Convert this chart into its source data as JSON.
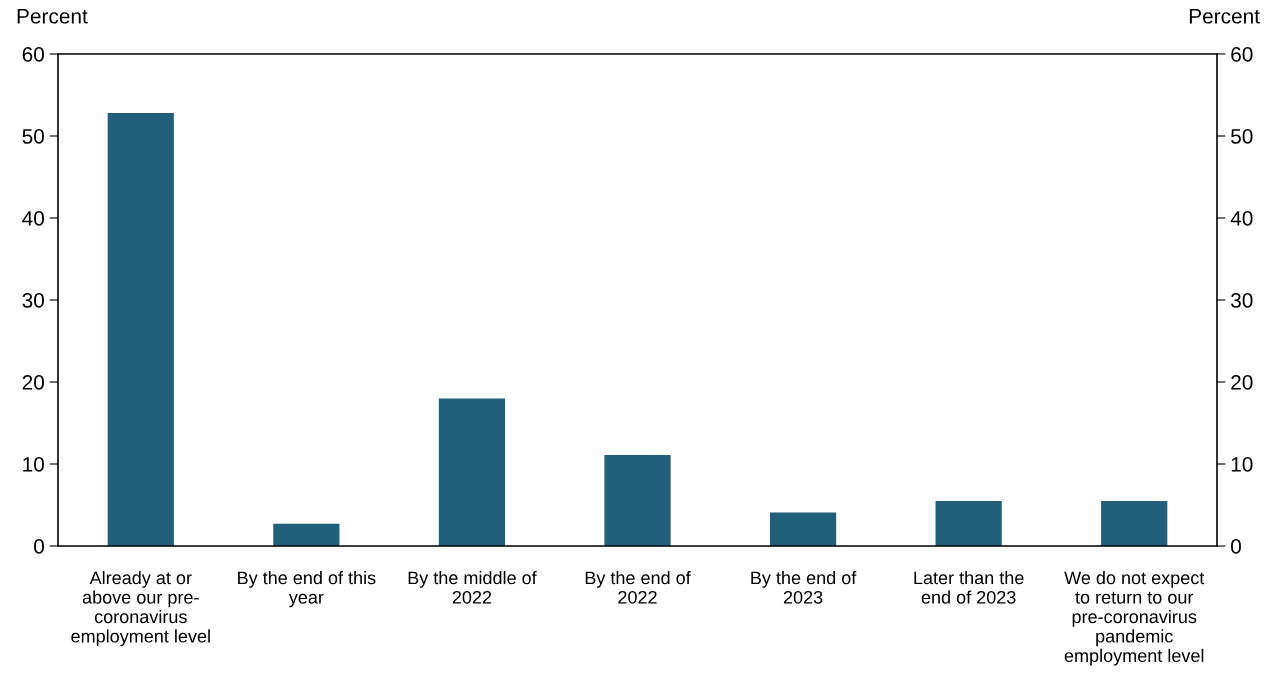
{
  "chart_data": {
    "type": "bar",
    "categories": [
      "Already at or\nabove our pre-\ncoronavirus\nemployment level",
      "By the end of this\nyear",
      "By the middle of\n2022",
      "By the end of\n2022",
      "By the end of\n2023",
      "Later than the\nend of 2023",
      "We do not expect\nto return to our\npre-coronavirus\npandemic\nemployment level"
    ],
    "values": [
      52.8,
      2.7,
      18.0,
      11.1,
      4.1,
      5.5,
      5.5
    ],
    "color": "#215f7a",
    "ylabel": "Percent",
    "y2label": "Percent",
    "ylim": [
      0,
      60
    ],
    "yticks": [
      0,
      10,
      20,
      30,
      40,
      50,
      60
    ],
    "y2lim": [
      0,
      60
    ],
    "y2ticks": [
      0,
      10,
      20,
      30,
      40,
      50,
      60
    ],
    "grid": false,
    "legend": false
  }
}
